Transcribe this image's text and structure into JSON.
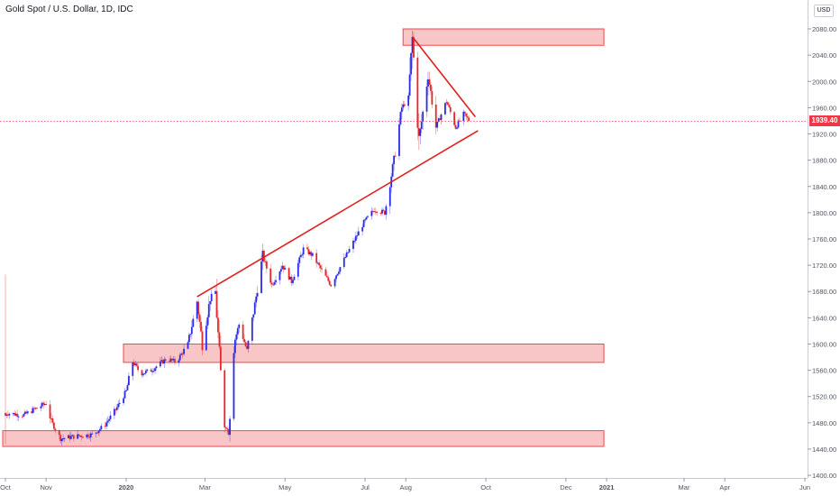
{
  "header": {
    "title": "Gold Spot / U.S. Dollar, 1D, IDC",
    "currency": "USD"
  },
  "colors": {
    "up": "#2a2ae8",
    "down": "#e8262a",
    "zone_fill": "#f7bcbc",
    "zone_border": "#f04848",
    "line": "#e02020",
    "axis_text": "#50535e",
    "grid": "#e0e3eb"
  },
  "last_price": {
    "label": "1939.40",
    "value": 1939.4
  },
  "chart_data": {
    "type": "candlestick",
    "title": "Gold Spot / U.S. Dollar, 1D, IDC",
    "y_ticks": [
      1400,
      1440,
      1480,
      1520,
      1560,
      1600,
      1640,
      1680,
      1720,
      1760,
      1800,
      1840,
      1880,
      1920,
      1960,
      2000,
      2040,
      2080
    ],
    "y_tick_labels": [
      "1400.00",
      "1440.00",
      "1480.00",
      "1520.00",
      "1560.00",
      "1600.00",
      "1640.00",
      "1680.00",
      "1720.00",
      "1760.00",
      "1800.00",
      "1840.00",
      "1880.00",
      "1920.00",
      "1960.00",
      "2000.00",
      "2040.00",
      "2080.00"
    ],
    "ylim": [
      1396,
      2124
    ],
    "x_range": [
      "2019-10-01",
      "2021-06-01"
    ],
    "x_ticks": [
      {
        "date": "2019-10-01",
        "label": "Oct",
        "bold": false
      },
      {
        "date": "2019-11-01",
        "label": "Nov",
        "bold": false
      },
      {
        "date": "2020-01-01",
        "label": "2020",
        "bold": true
      },
      {
        "date": "2020-03-01",
        "label": "Mar",
        "bold": false
      },
      {
        "date": "2020-05-01",
        "label": "May",
        "bold": false
      },
      {
        "date": "2020-07-01",
        "label": "Jul",
        "bold": false
      },
      {
        "date": "2020-08-01",
        "label": "Aug",
        "bold": false
      },
      {
        "date": "2020-10-01",
        "label": "Oct",
        "bold": false
      },
      {
        "date": "2020-12-01",
        "label": "Dec",
        "bold": false
      },
      {
        "date": "2021-01-01",
        "label": "2021",
        "bold": true
      },
      {
        "date": "2021-03-01",
        "label": "Mar",
        "bold": false
      },
      {
        "date": "2021-04-01",
        "label": "Apr",
        "bold": false
      },
      {
        "date": "2021-06-01",
        "label": "Jun",
        "bold": false
      }
    ],
    "series_points": [
      [
        "2019-10-01",
        1495
      ],
      [
        "2019-10-15",
        1492
      ],
      [
        "2019-11-01",
        1510
      ],
      [
        "2019-11-05",
        1482
      ],
      [
        "2019-11-12",
        1456
      ],
      [
        "2019-11-25",
        1460
      ],
      [
        "2019-12-06",
        1462
      ],
      [
        "2019-12-15",
        1475
      ],
      [
        "2019-12-24",
        1500
      ],
      [
        "2020-01-01",
        1528
      ],
      [
        "2020-01-06",
        1573
      ],
      [
        "2020-01-12",
        1555
      ],
      [
        "2020-01-20",
        1560
      ],
      [
        "2020-02-01",
        1578
      ],
      [
        "2020-02-08",
        1572
      ],
      [
        "2020-02-17",
        1600
      ],
      [
        "2020-02-24",
        1665
      ],
      [
        "2020-02-28",
        1600
      ],
      [
        "2020-03-05",
        1670
      ],
      [
        "2020-03-09",
        1680
      ],
      [
        "2020-03-12",
        1580
      ],
      [
        "2020-03-16",
        1480
      ],
      [
        "2020-03-19",
        1465
      ],
      [
        "2020-03-23",
        1600
      ],
      [
        "2020-03-27",
        1630
      ],
      [
        "2020-04-02",
        1590
      ],
      [
        "2020-04-08",
        1660
      ],
      [
        "2020-04-14",
        1735
      ],
      [
        "2020-04-21",
        1690
      ],
      [
        "2020-04-29",
        1720
      ],
      [
        "2020-05-06",
        1695
      ],
      [
        "2020-05-15",
        1745
      ],
      [
        "2020-05-22",
        1735
      ],
      [
        "2020-05-28",
        1715
      ],
      [
        "2020-06-05",
        1690
      ],
      [
        "2020-06-14",
        1725
      ],
      [
        "2020-06-22",
        1755
      ],
      [
        "2020-06-30",
        1785
      ],
      [
        "2020-07-08",
        1805
      ],
      [
        "2020-07-16",
        1800
      ],
      [
        "2020-07-23",
        1880
      ],
      [
        "2020-07-29",
        1960
      ],
      [
        "2020-08-03",
        1975
      ],
      [
        "2020-08-06",
        2065
      ],
      [
        "2020-08-11",
        1910
      ],
      [
        "2020-08-18",
        2010
      ],
      [
        "2020-08-24",
        1930
      ],
      [
        "2020-09-01",
        1970
      ],
      [
        "2020-09-08",
        1930
      ],
      [
        "2020-09-14",
        1950
      ],
      [
        "2020-09-19",
        1939
      ]
    ],
    "zones": [
      {
        "from": "2020-08-01",
        "to": "2021-01-01",
        "low": 2055,
        "high": 2080
      },
      {
        "from": "2020-01-01",
        "to": "2021-01-01",
        "low": 1572,
        "high": 1600
      },
      {
        "from": "2019-10-01",
        "to": "2021-01-01",
        "low": 1444,
        "high": 1468
      }
    ],
    "trendlines": [
      {
        "from": [
          "2020-02-24",
          1672
        ],
        "to": [
          "2020-09-25",
          1925
        ]
      },
      {
        "from": [
          "2020-08-06",
          2068
        ],
        "to": [
          "2020-09-23",
          1946
        ]
      }
    ]
  }
}
